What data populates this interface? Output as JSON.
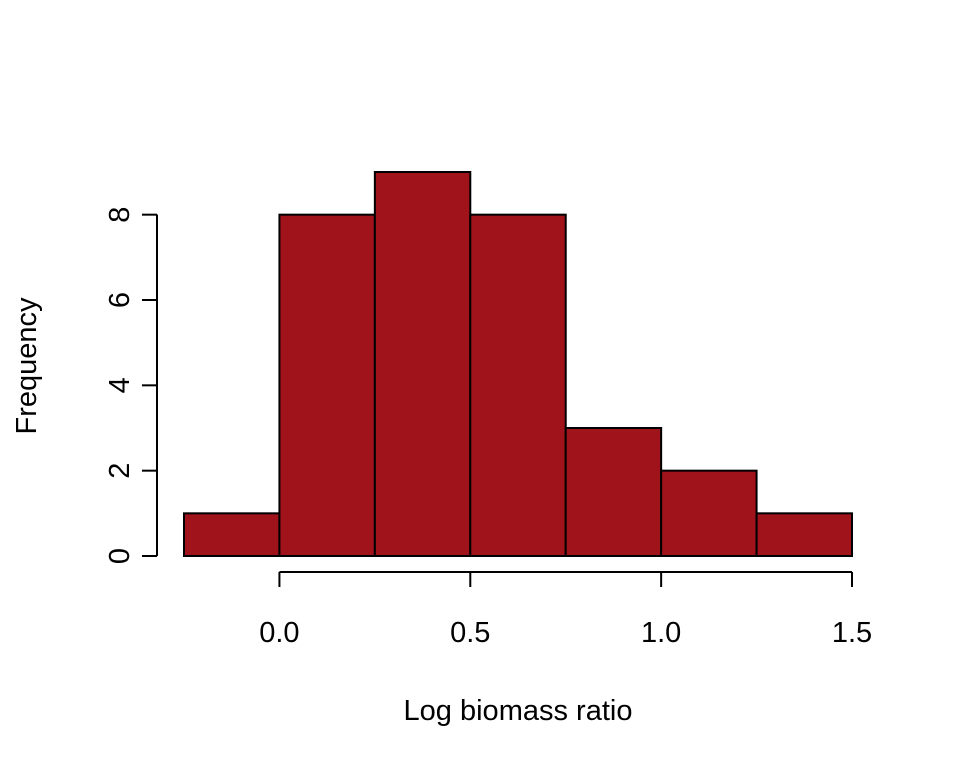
{
  "chart_data": {
    "type": "bar",
    "title": "",
    "xlabel": "Log biomass ratio",
    "ylabel": "Frequency",
    "bins": [
      {
        "x0": -0.25,
        "x1": 0.0,
        "count": 1
      },
      {
        "x0": 0.0,
        "x1": 0.25,
        "count": 8
      },
      {
        "x0": 0.25,
        "x1": 0.5,
        "count": 9
      },
      {
        "x0": 0.5,
        "x1": 0.75,
        "count": 8
      },
      {
        "x0": 0.75,
        "x1": 1.0,
        "count": 3
      },
      {
        "x0": 1.0,
        "x1": 1.25,
        "count": 2
      },
      {
        "x0": 1.25,
        "x1": 1.5,
        "count": 1
      }
    ],
    "xlim": [
      -0.25,
      1.5
    ],
    "ylim": [
      0,
      9
    ],
    "xticks": [
      0.0,
      0.5,
      1.0,
      1.5
    ],
    "xtick_labels": [
      "0.0",
      "0.5",
      "1.0",
      "1.5"
    ],
    "yticks": [
      0,
      2,
      4,
      6,
      8
    ],
    "ytick_labels": [
      "0",
      "2",
      "4",
      "6",
      "8"
    ],
    "bar_color": "#A0131B",
    "edge_color": "#000000",
    "grid": false,
    "legend": "none"
  }
}
